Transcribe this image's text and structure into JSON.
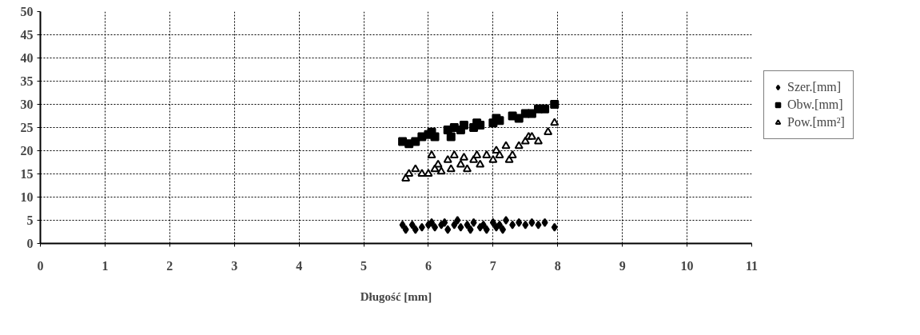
{
  "chart_data": {
    "type": "scatter",
    "xlabel": "Długość [mm]",
    "xlim": [
      0,
      11
    ],
    "xticks": [
      0,
      1,
      2,
      3,
      4,
      5,
      6,
      7,
      8,
      9,
      10,
      11
    ],
    "ylim": [
      0,
      50
    ],
    "yticks": [
      0,
      5,
      10,
      15,
      20,
      25,
      30,
      35,
      40,
      45,
      50
    ],
    "grid": true,
    "legend": "right",
    "series": [
      {
        "name": "Szer.[mm]",
        "color": "#000000",
        "marker": "diamond",
        "x": [
          5.6,
          5.65,
          5.75,
          5.8,
          5.9,
          6.0,
          6.05,
          6.1,
          6.2,
          6.25,
          6.3,
          6.4,
          6.45,
          6.5,
          6.6,
          6.65,
          6.7,
          6.8,
          6.85,
          6.9,
          7.0,
          7.05,
          7.1,
          7.15,
          7.2,
          7.3,
          7.4,
          7.5,
          7.6,
          7.7,
          7.8,
          7.95
        ],
        "values": [
          4,
          3,
          4,
          3,
          3.5,
          4,
          4.5,
          3.5,
          4,
          4.5,
          3,
          4,
          5,
          3.5,
          4,
          3,
          4.5,
          3.5,
          4,
          3,
          4.5,
          3.5,
          4,
          3,
          5,
          4,
          4.5,
          4,
          4.5,
          4,
          4.5,
          3.5
        ]
      },
      {
        "name": "Obw.[mm]",
        "color": "#000000",
        "marker": "square",
        "x": [
          5.6,
          5.7,
          5.8,
          5.9,
          6.0,
          6.05,
          6.1,
          6.3,
          6.35,
          6.4,
          6.5,
          6.55,
          6.7,
          6.75,
          6.8,
          7.0,
          7.05,
          7.1,
          7.3,
          7.4,
          7.5,
          7.6,
          7.7,
          7.8,
          7.95
        ],
        "values": [
          22,
          21.5,
          22,
          23,
          23.5,
          24,
          23,
          24.5,
          23,
          25,
          24.5,
          25.5,
          25,
          26,
          25.5,
          26,
          27,
          26.5,
          27.5,
          27,
          28,
          28,
          29,
          29,
          30
        ]
      },
      {
        "name": "Pow.[mm²]",
        "color": "#000000",
        "marker": "triangle",
        "x": [
          5.65,
          5.7,
          5.8,
          5.9,
          6.0,
          6.05,
          6.1,
          6.15,
          6.2,
          6.3,
          6.35,
          6.4,
          6.5,
          6.55,
          6.6,
          6.7,
          6.75,
          6.8,
          6.9,
          7.0,
          7.05,
          7.1,
          7.2,
          7.25,
          7.3,
          7.4,
          7.5,
          7.55,
          7.6,
          7.7,
          7.85,
          7.95
        ],
        "values": [
          14,
          15,
          16,
          15,
          15,
          19,
          16,
          17,
          15.5,
          18,
          16,
          19,
          17,
          18.5,
          16,
          18,
          19,
          17,
          19,
          18,
          20,
          19,
          21,
          18,
          19,
          21,
          22,
          23,
          23,
          22,
          24,
          26
        ]
      }
    ]
  }
}
